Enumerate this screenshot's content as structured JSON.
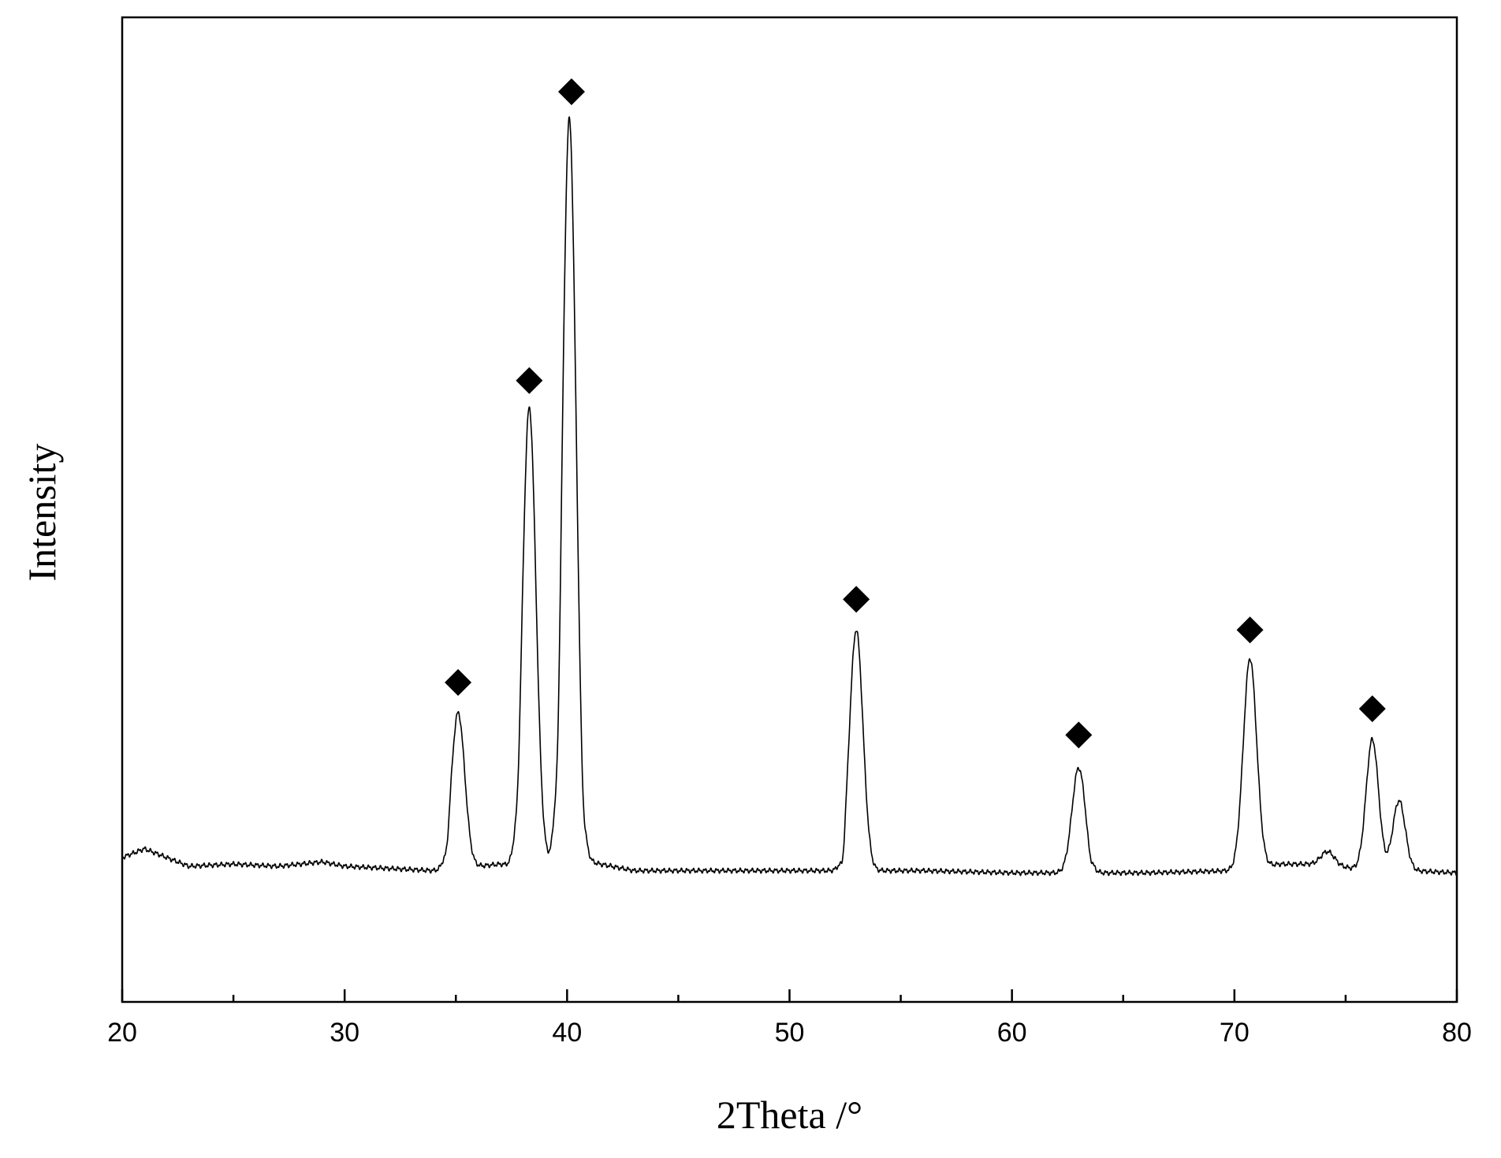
{
  "chart_data": {
    "type": "line",
    "xlabel": "2Theta /°",
    "ylabel": "Intensity",
    "xlim": [
      20,
      80
    ],
    "ylim": [
      -30,
      195
    ],
    "x_ticks_major": [
      20,
      30,
      40,
      50,
      60,
      70,
      80
    ],
    "x_ticks_minor": [
      25,
      35,
      45,
      55,
      65,
      75
    ],
    "y_ticks_shown": false,
    "grid": false,
    "legend": "none",
    "baseline": [
      [
        20,
        3
      ],
      [
        21,
        5
      ],
      [
        22,
        3
      ],
      [
        23,
        1
      ],
      [
        25,
        1.5
      ],
      [
        27,
        1
      ],
      [
        29,
        2
      ],
      [
        30,
        1
      ],
      [
        32,
        0.5
      ],
      [
        34,
        0
      ],
      [
        35,
        0
      ],
      [
        36,
        1
      ],
      [
        37,
        1.5
      ],
      [
        38,
        0.5
      ],
      [
        39,
        1.5
      ],
      [
        41,
        2
      ],
      [
        43,
        0
      ],
      [
        46,
        0
      ],
      [
        50,
        0
      ],
      [
        53,
        0
      ],
      [
        56,
        0
      ],
      [
        60,
        -0.5
      ],
      [
        63,
        -0.5
      ],
      [
        66,
        -0.5
      ],
      [
        70,
        0
      ],
      [
        72,
        1.5
      ],
      [
        74,
        1.5
      ],
      [
        76,
        0
      ],
      [
        78,
        0
      ],
      [
        80,
        -0.5
      ]
    ],
    "peaks": [
      {
        "x": 35.1,
        "height": 36,
        "width": 0.3
      },
      {
        "x": 38.3,
        "height": 105,
        "width": 0.3
      },
      {
        "x": 40.1,
        "height": 170,
        "width": 0.3
      },
      {
        "x": 53.0,
        "height": 55,
        "width": 0.3
      },
      {
        "x": 63.0,
        "height": 24,
        "width": 0.3
      },
      {
        "x": 70.7,
        "height": 48,
        "width": 0.3
      },
      {
        "x": 74.2,
        "height": 3,
        "width": 0.3
      },
      {
        "x": 76.2,
        "height": 30,
        "width": 0.28
      },
      {
        "x": 77.4,
        "height": 16,
        "width": 0.28
      }
    ],
    "dips": [
      {
        "x": 34.6,
        "depth": -3
      },
      {
        "x": 37.8,
        "depth": -5
      },
      {
        "x": 39.6,
        "depth": -10
      },
      {
        "x": 40.7,
        "depth": -5
      },
      {
        "x": 52.4,
        "depth": -4
      },
      {
        "x": 63.5,
        "depth": -1.5
      }
    ],
    "markers": [
      {
        "x": 35.1,
        "y": 43,
        "symbol": "filled-diamond"
      },
      {
        "x": 38.3,
        "y": 112,
        "symbol": "filled-diamond"
      },
      {
        "x": 40.2,
        "y": 178,
        "symbol": "filled-diamond"
      },
      {
        "x": 53.0,
        "y": 62,
        "symbol": "filled-diamond"
      },
      {
        "x": 63.0,
        "y": 31,
        "symbol": "filled-diamond"
      },
      {
        "x": 70.7,
        "y": 55,
        "symbol": "filled-diamond"
      },
      {
        "x": 76.2,
        "y": 37,
        "symbol": "filled-diamond"
      }
    ]
  }
}
